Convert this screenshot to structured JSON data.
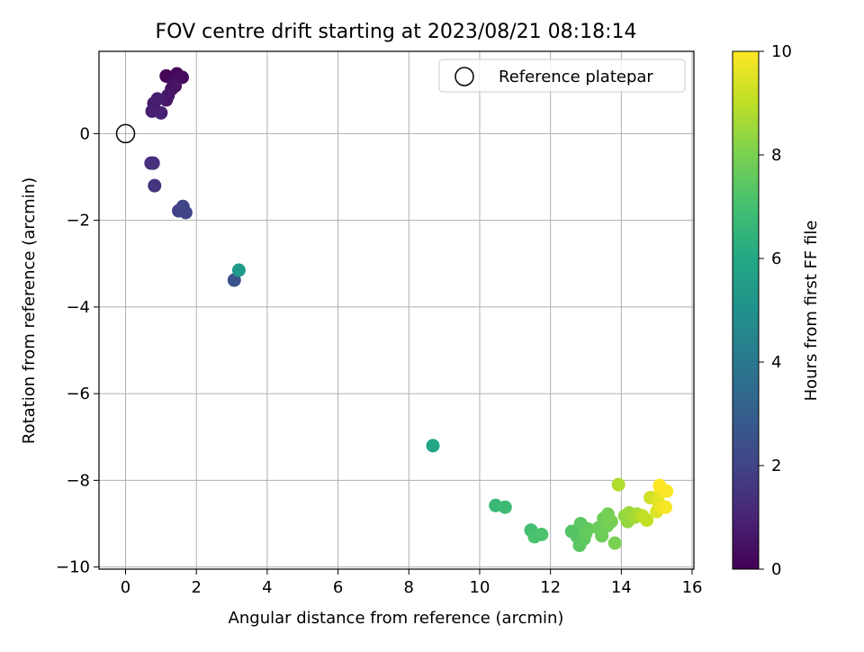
{
  "chart_data": {
    "type": "scatter",
    "title": "FOV centre drift starting at 2023/08/21 08:18:14",
    "xlabel": "Angular distance from reference (arcmin)",
    "ylabel": "Rotation from reference (arcmin)",
    "xlim": [
      -0.75,
      16.05
    ],
    "ylim": [
      -10.05,
      1.9
    ],
    "xticks": [
      0,
      2,
      4,
      6,
      8,
      10,
      12,
      14,
      16
    ],
    "yticks": [
      0,
      -2,
      -4,
      -6,
      -8,
      -10
    ],
    "grid": true,
    "legend": {
      "position": "top-right",
      "entries": [
        "Reference platepar"
      ]
    },
    "reference_point": {
      "x": 0,
      "y": 0
    },
    "colorbar": {
      "label": "Hours from first FF file",
      "range": [
        0,
        10
      ],
      "ticks": [
        0,
        2,
        4,
        6,
        8,
        10
      ],
      "colormap": "viridis"
    },
    "points": [
      {
        "x": 1.15,
        "y": 1.33,
        "t": 0.1
      },
      {
        "x": 1.45,
        "y": 1.38,
        "t": 0.2
      },
      {
        "x": 1.6,
        "y": 1.3,
        "t": 0.3
      },
      {
        "x": 1.35,
        "y": 1.2,
        "t": 0.35
      },
      {
        "x": 1.3,
        "y": 1.03,
        "t": 0.45
      },
      {
        "x": 1.4,
        "y": 1.1,
        "t": 0.5
      },
      {
        "x": 1.2,
        "y": 0.88,
        "t": 0.6
      },
      {
        "x": 1.15,
        "y": 0.78,
        "t": 0.65
      },
      {
        "x": 0.8,
        "y": 0.7,
        "t": 0.75
      },
      {
        "x": 0.9,
        "y": 0.8,
        "t": 0.8
      },
      {
        "x": 0.75,
        "y": 0.52,
        "t": 0.85
      },
      {
        "x": 1.0,
        "y": 0.48,
        "t": 0.9
      },
      {
        "x": 0.72,
        "y": -0.68,
        "t": 1.35
      },
      {
        "x": 0.78,
        "y": -0.68,
        "t": 1.4
      },
      {
        "x": 0.82,
        "y": -1.2,
        "t": 1.5
      },
      {
        "x": 1.5,
        "y": -1.78,
        "t": 1.9
      },
      {
        "x": 1.62,
        "y": -1.68,
        "t": 2.0
      },
      {
        "x": 1.7,
        "y": -1.82,
        "t": 2.05
      },
      {
        "x": 3.07,
        "y": -3.38,
        "t": 2.6
      },
      {
        "x": 3.2,
        "y": -3.15,
        "t": 5.4
      },
      {
        "x": 8.68,
        "y": -7.2,
        "t": 5.9
      },
      {
        "x": 10.45,
        "y": -8.58,
        "t": 6.7
      },
      {
        "x": 10.72,
        "y": -8.62,
        "t": 6.8
      },
      {
        "x": 11.45,
        "y": -9.15,
        "t": 7.0
      },
      {
        "x": 11.55,
        "y": -9.3,
        "t": 7.1
      },
      {
        "x": 11.75,
        "y": -9.25,
        "t": 7.15
      },
      {
        "x": 12.6,
        "y": -9.18,
        "t": 7.3
      },
      {
        "x": 12.75,
        "y": -9.3,
        "t": 7.35
      },
      {
        "x": 12.85,
        "y": -9.0,
        "t": 7.4
      },
      {
        "x": 12.82,
        "y": -9.5,
        "t": 7.45
      },
      {
        "x": 12.95,
        "y": -9.35,
        "t": 7.5
      },
      {
        "x": 13.05,
        "y": -9.12,
        "t": 7.55
      },
      {
        "x": 13.0,
        "y": -9.22,
        "t": 7.6
      },
      {
        "x": 13.35,
        "y": -9.1,
        "t": 7.7
      },
      {
        "x": 13.45,
        "y": -9.28,
        "t": 7.75
      },
      {
        "x": 13.5,
        "y": -8.88,
        "t": 7.8
      },
      {
        "x": 13.6,
        "y": -9.05,
        "t": 7.85
      },
      {
        "x": 13.62,
        "y": -8.78,
        "t": 7.9
      },
      {
        "x": 13.72,
        "y": -8.95,
        "t": 7.95
      },
      {
        "x": 13.82,
        "y": -9.45,
        "t": 8.0
      },
      {
        "x": 14.1,
        "y": -8.82,
        "t": 8.3
      },
      {
        "x": 14.18,
        "y": -8.95,
        "t": 8.4
      },
      {
        "x": 14.22,
        "y": -8.75,
        "t": 8.5
      },
      {
        "x": 14.38,
        "y": -8.85,
        "t": 8.6
      },
      {
        "x": 14.45,
        "y": -8.78,
        "t": 8.7
      },
      {
        "x": 13.92,
        "y": -8.1,
        "t": 8.8
      },
      {
        "x": 14.6,
        "y": -8.82,
        "t": 9.0
      },
      {
        "x": 14.72,
        "y": -8.92,
        "t": 9.1
      },
      {
        "x": 14.82,
        "y": -8.4,
        "t": 9.3
      },
      {
        "x": 15.0,
        "y": -8.72,
        "t": 9.5
      },
      {
        "x": 15.05,
        "y": -8.5,
        "t": 9.6
      },
      {
        "x": 15.1,
        "y": -8.28,
        "t": 9.7
      },
      {
        "x": 15.15,
        "y": -8.62,
        "t": 9.8
      },
      {
        "x": 15.25,
        "y": -8.62,
        "t": 9.9
      },
      {
        "x": 15.28,
        "y": -8.25,
        "t": 9.95
      },
      {
        "x": 15.08,
        "y": -8.12,
        "t": 10.0
      }
    ]
  }
}
